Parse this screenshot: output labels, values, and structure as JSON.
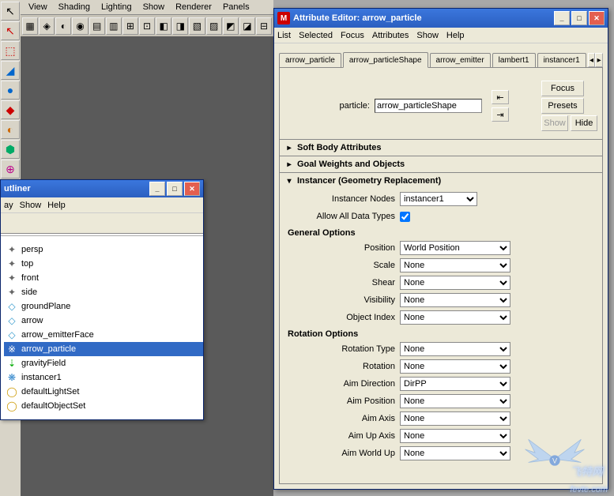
{
  "viewport_menu": [
    "View",
    "Shading",
    "Lighting",
    "Show",
    "Renderer",
    "Panels"
  ],
  "shelf_icons": [
    "▦",
    "◈",
    "◐",
    "◉",
    "▤",
    "▥",
    "⊞",
    "⊡",
    "◧",
    "◨",
    "▧",
    "▨",
    "◩",
    "◪",
    "⊟"
  ],
  "left_tools": [
    "↖",
    "↖",
    "⬚",
    "◢",
    "●",
    "◆",
    "◐",
    "⬢",
    "⊕"
  ],
  "left_tool_colors": [
    "#000",
    "#c00",
    "#c00",
    "#06c",
    "#06c",
    "#c00",
    "#c60",
    "#0a6",
    "#b08"
  ],
  "outliner": {
    "title": "utliner",
    "menu": [
      "ay",
      "Show",
      "Help"
    ],
    "items": [
      {
        "icon": "✦",
        "label": "persp",
        "color": "#666"
      },
      {
        "icon": "✦",
        "label": "top",
        "color": "#666"
      },
      {
        "icon": "✦",
        "label": "front",
        "color": "#666"
      },
      {
        "icon": "✦",
        "label": "side",
        "color": "#666"
      },
      {
        "icon": "◇",
        "label": "groundPlane",
        "color": "#39c"
      },
      {
        "icon": "◇",
        "label": "arrow",
        "color": "#39c"
      },
      {
        "icon": "◇",
        "label": "arrow_emitterFace",
        "color": "#39c"
      },
      {
        "icon": "※",
        "label": "arrow_particle",
        "color": "#3a6",
        "selected": true
      },
      {
        "icon": "⇣",
        "label": "gravityField",
        "color": "#0a0"
      },
      {
        "icon": "❋",
        "label": "instancer1",
        "color": "#38c"
      },
      {
        "icon": "◯",
        "label": "defaultLightSet",
        "color": "#c90"
      },
      {
        "icon": "◯",
        "label": "defaultObjectSet",
        "color": "#c90"
      }
    ]
  },
  "attr_editor": {
    "title": "Attribute Editor: arrow_particle",
    "menu": [
      "List",
      "Selected",
      "Focus",
      "Attributes",
      "Show",
      "Help"
    ],
    "tabs": [
      "arrow_particle",
      "arrow_particleShape",
      "arrow_emitter",
      "lambert1",
      "instancer1"
    ],
    "active_tab": 1,
    "particle_label": "particle:",
    "particle_value": "arrow_particleShape",
    "btn_focus": "Focus",
    "btn_presets": "Presets",
    "btn_show": "Show",
    "btn_hide": "Hide",
    "sections_collapsed": [
      "Soft Body Attributes",
      "Goal Weights and Objects"
    ],
    "section_open": "Instancer (Geometry Replacement)",
    "instancer_nodes_lbl": "Instancer Nodes",
    "instancer_nodes_val": "instancer1",
    "allow_all_lbl": "Allow All Data Types",
    "allow_all_checked": true,
    "general_head": "General Options",
    "general": [
      {
        "lbl": "Position",
        "val": "World Position"
      },
      {
        "lbl": "Scale",
        "val": "None"
      },
      {
        "lbl": "Shear",
        "val": "None"
      },
      {
        "lbl": "Visibility",
        "val": "None"
      },
      {
        "lbl": "Object Index",
        "val": "None"
      }
    ],
    "rotation_head": "Rotation Options",
    "rotation": [
      {
        "lbl": "Rotation Type",
        "val": "None"
      },
      {
        "lbl": "Rotation",
        "val": "None"
      },
      {
        "lbl": "Aim Direction",
        "val": "DirPP"
      },
      {
        "lbl": "Aim Position",
        "val": "None"
      },
      {
        "lbl": "Aim Axis",
        "val": "None"
      },
      {
        "lbl": "Aim Up Axis",
        "val": "None"
      },
      {
        "lbl": "Aim World Up",
        "val": "None"
      }
    ]
  },
  "watermark": "fevte.com",
  "watermark_cn": "飞特网"
}
